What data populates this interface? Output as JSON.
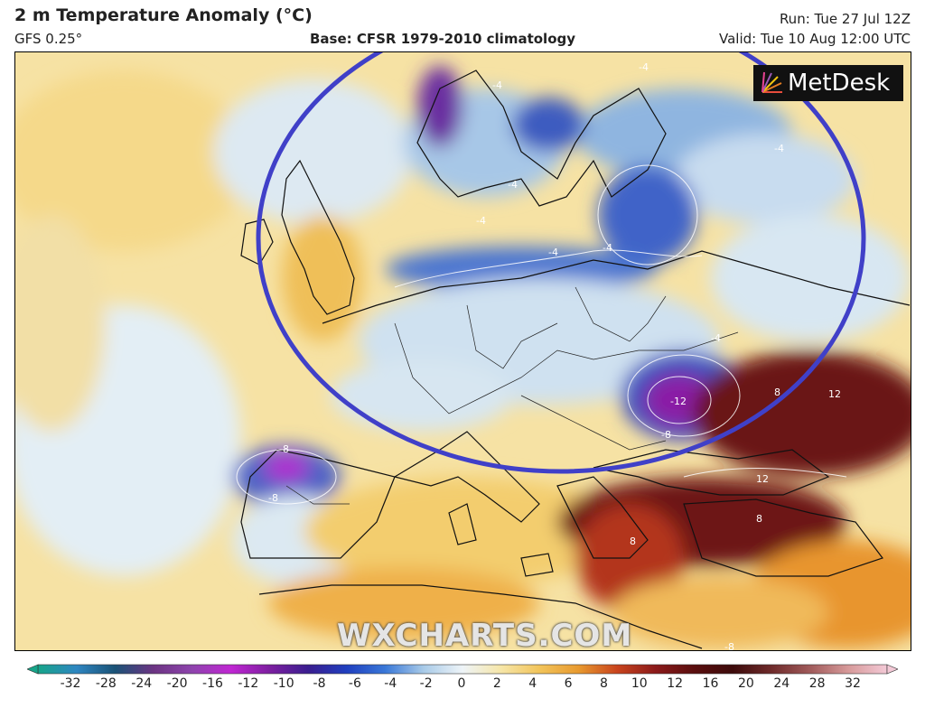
{
  "header": {
    "title": "2 m Temperature Anomaly (°C)",
    "model": "GFS 0.25°",
    "base": "Base: CFSR 1979-2010 climatology",
    "run": "Run: Tue 27 Jul 12Z",
    "valid": "Valid: Tue 10 Aug 12:00 UTC"
  },
  "map": {
    "logo_text": "MetDesk",
    "watermark": "WXCHARTS.COM",
    "contour_labels": [
      "-4",
      "-4",
      "-4",
      "-4",
      "-4",
      "-4",
      "-4",
      "-4",
      "-8",
      "-8",
      "-8",
      "-12",
      "8",
      "8",
      "8",
      "12",
      "12",
      "-8"
    ],
    "highlight_color": "#4040c8"
  },
  "colorbar": {
    "ticks": [
      "-32",
      "-28",
      "-24",
      "-20",
      "-16",
      "-12",
      "-10",
      "-8",
      "-6",
      "-4",
      "-2",
      "0",
      "2",
      "4",
      "6",
      "8",
      "10",
      "12",
      "16",
      "20",
      "24",
      "28",
      "32"
    ],
    "colors": [
      "#17a589",
      "#2e86c1",
      "#1a5276",
      "#6c3483",
      "#8e44ad",
      "#c026d3",
      "#7d1fa0",
      "#3a1d8f",
      "#1f3fbf",
      "#3a78d8",
      "#a9cbe8",
      "#eef4f8",
      "#f6e6a8",
      "#f2c45a",
      "#e89a2f",
      "#c9441d",
      "#8b1a1a",
      "#5a0e0e",
      "#3d0b0b",
      "#6e2a2a",
      "#a05a5a",
      "#d79a9a",
      "#f3c9d6"
    ]
  }
}
